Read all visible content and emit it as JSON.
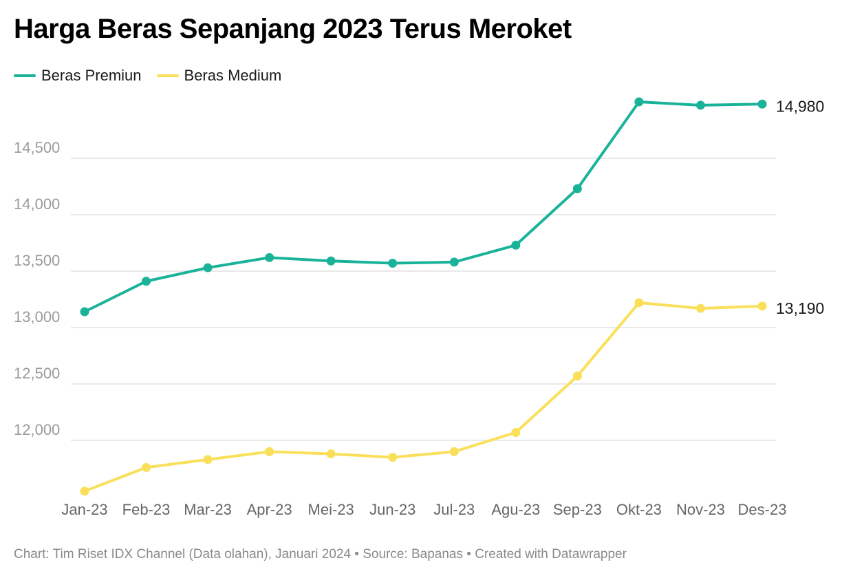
{
  "title": "Harga Beras Sepanjang 2023 Terus Meroket",
  "footer": {
    "credit": "Chart: Tim Riset IDX Channel (Data olahan), Januari 2024 • Source: Bapanas • Created with Datawrapper"
  },
  "colors": {
    "premium": "#1ab39a",
    "medium": "#fae05a",
    "grid": "#e2e2e2",
    "tick": "#9a9a9a"
  },
  "chart_data": {
    "type": "line",
    "title": "Harga Beras Sepanjang 2023 Terus Meroket",
    "categories": [
      "Jan-23",
      "Feb-23",
      "Mar-23",
      "Apr-23",
      "Mei-23",
      "Jun-23",
      "Jul-23",
      "Agu-23",
      "Sep-23",
      "Okt-23",
      "Nov-23",
      "Des-23"
    ],
    "series": [
      {
        "name": "Beras Premiun",
        "values": [
          13140,
          13410,
          13530,
          13620,
          13590,
          13570,
          13580,
          13730,
          14230,
          15000,
          14970,
          14980
        ],
        "end_label": "14,980"
      },
      {
        "name": "Beras Medium",
        "values": [
          11550,
          11760,
          11830,
          11900,
          11880,
          11850,
          11900,
          12070,
          12570,
          13220,
          13170,
          13190
        ],
        "end_label": "13,190"
      }
    ],
    "y_ticks": [
      12000,
      12500,
      13000,
      13500,
      14000,
      14500
    ],
    "y_tick_labels": [
      "12,000",
      "12,500",
      "13,000",
      "13,500",
      "14,000",
      "14,500"
    ],
    "ylim": [
      11550,
      14980
    ],
    "grid": true,
    "legend": "top-left",
    "xlabel": "",
    "ylabel": ""
  }
}
